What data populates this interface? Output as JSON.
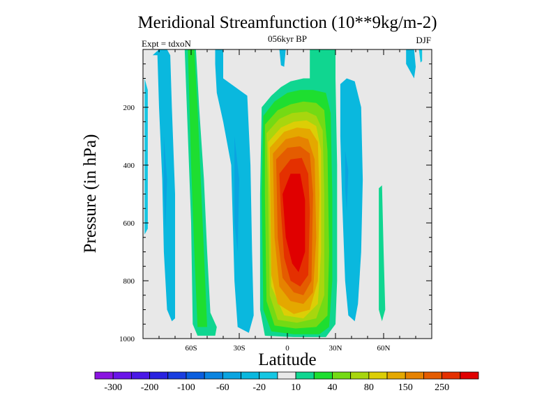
{
  "chart_data": {
    "type": "heatmap",
    "title": "Meridional Streamfunction (10**9kg/m-2)",
    "subtitle": "056kyr BP",
    "left_label": "Expt = tdxoN",
    "right_label": "DJF",
    "xlabel": "Latitude",
    "ylabel": "Pressure (in hPa)",
    "xlim": [
      -90,
      90
    ],
    "ylim": [
      0,
      1000
    ],
    "y_reversed": true,
    "x_ticks": [
      {
        "value": -60,
        "label": "60S"
      },
      {
        "value": -30,
        "label": "30S"
      },
      {
        "value": 0,
        "label": "0"
      },
      {
        "value": 30,
        "label": "30N"
      },
      {
        "value": 60,
        "label": "60N"
      }
    ],
    "y_ticks": [
      {
        "value": 200,
        "label": "200"
      },
      {
        "value": 400,
        "label": "400"
      },
      {
        "value": 600,
        "label": "600"
      },
      {
        "value": 800,
        "label": "800"
      },
      {
        "value": 1000,
        "label": "1000"
      }
    ],
    "contour_levels": [
      -300,
      -250,
      -200,
      -150,
      -100,
      -80,
      -60,
      -40,
      -20,
      -10,
      10,
      20,
      40,
      60,
      80,
      100,
      150,
      200,
      250,
      300
    ],
    "colors": [
      "#8a14e0",
      "#6a14e8",
      "#4a18e6",
      "#2a22e0",
      "#1a3ee0",
      "#0a5ede",
      "#0a84e0",
      "#0aa4e0",
      "#0ab8de",
      "#14c6e2",
      "#e8e8e8",
      "#10d690",
      "#1ede30",
      "#74da14",
      "#a8d60e",
      "#dcce06",
      "#e4a800",
      "#e68200",
      "#e45c00",
      "#e43000",
      "#e00000"
    ],
    "colorbar_labels": [
      {
        "after_level": 0,
        "label": "-300"
      },
      {
        "after_level": 2,
        "label": "-200"
      },
      {
        "after_level": 4,
        "label": "-100"
      },
      {
        "after_level": 6,
        "label": "-60"
      },
      {
        "after_level": 8,
        "label": "-20"
      },
      {
        "after_level": 10,
        "label": "10"
      },
      {
        "after_level": 12,
        "label": "40"
      },
      {
        "after_level": 14,
        "label": "80"
      },
      {
        "after_level": 16,
        "label": "150"
      },
      {
        "after_level": 18,
        "label": "250"
      }
    ],
    "regions": [
      {
        "name": "sh-polar-cell",
        "band": 8,
        "points": [
          [
            -84,
            20
          ],
          [
            -81,
            20
          ],
          [
            -80,
            200
          ],
          [
            -78,
            450
          ],
          [
            -77,
            700
          ],
          [
            -75,
            900
          ],
          [
            -72,
            940
          ],
          [
            -70,
            930
          ],
          [
            -70,
            500
          ],
          [
            -72,
            200
          ],
          [
            -73,
            20
          ],
          [
            -75,
            0
          ],
          [
            -80,
            0
          ]
        ]
      },
      {
        "name": "sh-polar-cell-core",
        "band": 7,
        "points": [
          [
            -77,
            300
          ],
          [
            -75,
            450
          ],
          [
            -76,
            620
          ],
          [
            -77,
            480
          ]
        ]
      },
      {
        "name": "sh-ferrel-cell-outer",
        "band": 11,
        "points": [
          [
            -64,
            0
          ],
          [
            -57,
            0
          ],
          [
            -55,
            200
          ],
          [
            -52,
            450
          ],
          [
            -50,
            700
          ],
          [
            -48,
            910
          ],
          [
            -44,
            960
          ],
          [
            -45,
            990
          ],
          [
            -56,
            990
          ],
          [
            -59,
            950
          ],
          [
            -60,
            600
          ],
          [
            -62,
            300
          ]
        ]
      },
      {
        "name": "sh-ferrel-cell",
        "band": 12,
        "points": [
          [
            -62,
            0
          ],
          [
            -58,
            0
          ],
          [
            -56,
            200
          ],
          [
            -54,
            450
          ],
          [
            -52,
            700
          ],
          [
            -50,
            960
          ],
          [
            -56,
            960
          ],
          [
            -58,
            700
          ],
          [
            -60,
            400
          ],
          [
            -61,
            200
          ]
        ]
      },
      {
        "name": "sh-hadley-cell",
        "band": 8,
        "points": [
          [
            -45,
            0
          ],
          [
            -40,
            0
          ],
          [
            -40,
            100
          ],
          [
            -30,
            140
          ],
          [
            -25,
            160
          ],
          [
            -23,
            400
          ],
          [
            -22,
            700
          ],
          [
            -21,
            920
          ],
          [
            -24,
            980
          ],
          [
            -31,
            960
          ],
          [
            -33,
            800
          ],
          [
            -34,
            600
          ],
          [
            -35,
            400
          ],
          [
            -40,
            250
          ],
          [
            -44,
            150
          ],
          [
            -45,
            50
          ]
        ]
      },
      {
        "name": "sh-hadley-core",
        "band": 7,
        "points": [
          [
            -33,
            300
          ],
          [
            -30,
            450
          ],
          [
            -31,
            700
          ],
          [
            -33,
            600
          ]
        ]
      },
      {
        "name": "trop-outer-10",
        "band": 11,
        "points": [
          [
            -16,
            200
          ],
          [
            -10,
            160
          ],
          [
            -4,
            130
          ],
          [
            2,
            110
          ],
          [
            10,
            100
          ],
          [
            14,
            100
          ],
          [
            14,
            0
          ],
          [
            30,
            0
          ],
          [
            30,
            100
          ],
          [
            31,
            400
          ],
          [
            31,
            800
          ],
          [
            30,
            950
          ],
          [
            24,
            995
          ],
          [
            4,
            995
          ],
          [
            -14,
            990
          ],
          [
            -17,
            900
          ],
          [
            -17,
            500
          ]
        ]
      },
      {
        "name": "trop-20",
        "band": 12,
        "points": [
          [
            -15,
            230
          ],
          [
            -8,
            180
          ],
          [
            0,
            150
          ],
          [
            8,
            140
          ],
          [
            16,
            140
          ],
          [
            24,
            150
          ],
          [
            27,
            220
          ],
          [
            28,
            500
          ],
          [
            28,
            800
          ],
          [
            26,
            960
          ],
          [
            20,
            985
          ],
          [
            4,
            985
          ],
          [
            -10,
            975
          ],
          [
            -15,
            900
          ],
          [
            -16,
            500
          ]
        ]
      },
      {
        "name": "trop-40",
        "band": 13,
        "points": [
          [
            -14,
            260
          ],
          [
            -6,
            210
          ],
          [
            2,
            190
          ],
          [
            10,
            180
          ],
          [
            18,
            185
          ],
          [
            23,
            210
          ],
          [
            25,
            350
          ],
          [
            26,
            700
          ],
          [
            25,
            920
          ],
          [
            18,
            960
          ],
          [
            5,
            965
          ],
          [
            -8,
            955
          ],
          [
            -13,
            870
          ],
          [
            -14,
            500
          ]
        ]
      },
      {
        "name": "trop-60",
        "band": 14,
        "points": [
          [
            -13,
            290
          ],
          [
            -5,
            240
          ],
          [
            3,
            220
          ],
          [
            12,
            215
          ],
          [
            18,
            230
          ],
          [
            22,
            280
          ],
          [
            23,
            500
          ],
          [
            23,
            850
          ],
          [
            18,
            930
          ],
          [
            6,
            945
          ],
          [
            -6,
            935
          ],
          [
            -11,
            850
          ],
          [
            -12,
            500
          ]
        ]
      },
      {
        "name": "trop-80",
        "band": 15,
        "points": [
          [
            -12,
            320
          ],
          [
            -4,
            270
          ],
          [
            4,
            250
          ],
          [
            12,
            245
          ],
          [
            18,
            265
          ],
          [
            21,
            350
          ],
          [
            21,
            700
          ],
          [
            19,
            880
          ],
          [
            10,
            930
          ],
          [
            -2,
            920
          ],
          [
            -10,
            820
          ],
          [
            -11,
            500
          ]
        ]
      },
      {
        "name": "trop-100",
        "band": 16,
        "points": [
          [
            -11,
            340
          ],
          [
            -2,
            285
          ],
          [
            6,
            270
          ],
          [
            14,
            275
          ],
          [
            19,
            320
          ],
          [
            20,
            500
          ],
          [
            19,
            800
          ],
          [
            14,
            900
          ],
          [
            4,
            915
          ],
          [
            -6,
            880
          ],
          [
            -10,
            780
          ]
        ]
      },
      {
        "name": "trop-150",
        "band": 17,
        "points": [
          [
            -9,
            360
          ],
          [
            -1,
            310
          ],
          [
            7,
            300
          ],
          [
            13,
            310
          ],
          [
            17,
            380
          ],
          [
            18,
            650
          ],
          [
            16,
            840
          ],
          [
            10,
            880
          ],
          [
            2,
            870
          ],
          [
            -5,
            820
          ],
          [
            -8,
            650
          ]
        ]
      },
      {
        "name": "trop-200",
        "band": 18,
        "points": [
          [
            -7,
            380
          ],
          [
            0,
            340
          ],
          [
            8,
            335
          ],
          [
            14,
            360
          ],
          [
            16,
            500
          ],
          [
            15,
            800
          ],
          [
            10,
            850
          ],
          [
            4,
            840
          ],
          [
            -3,
            790
          ],
          [
            -6,
            650
          ]
        ]
      },
      {
        "name": "trop-250",
        "band": 19,
        "points": [
          [
            -5,
            430
          ],
          [
            2,
            380
          ],
          [
            9,
            375
          ],
          [
            13,
            430
          ],
          [
            14,
            560
          ],
          [
            13,
            780
          ],
          [
            8,
            820
          ],
          [
            2,
            800
          ],
          [
            -2,
            720
          ],
          [
            -4,
            560
          ]
        ]
      },
      {
        "name": "trop-300",
        "band": 20,
        "points": [
          [
            -3,
            500
          ],
          [
            2,
            430
          ],
          [
            8,
            430
          ],
          [
            11,
            520
          ],
          [
            11,
            700
          ],
          [
            7,
            770
          ],
          [
            3,
            740
          ],
          [
            -1,
            650
          ]
        ]
      },
      {
        "name": "nh-hadley-cell",
        "band": 8,
        "points": [
          [
            33,
            120
          ],
          [
            37,
            100
          ],
          [
            42,
            110
          ],
          [
            46,
            200
          ],
          [
            47,
            450
          ],
          [
            46,
            700
          ],
          [
            44,
            880
          ],
          [
            42,
            940
          ],
          [
            38,
            920
          ],
          [
            36,
            800
          ],
          [
            34,
            500
          ],
          [
            33,
            300
          ]
        ]
      },
      {
        "name": "nh-hadley-core",
        "band": 7,
        "points": [
          [
            36,
            350
          ],
          [
            38,
            420
          ],
          [
            37,
            560
          ],
          [
            36,
            480
          ]
        ]
      },
      {
        "name": "nh-ferrel-cell",
        "band": 11,
        "points": [
          [
            57,
            480
          ],
          [
            59,
            470
          ],
          [
            60,
            700
          ],
          [
            61,
            900
          ],
          [
            59,
            940
          ],
          [
            57,
            900
          ]
        ]
      },
      {
        "name": "nh-strat-patch-1",
        "band": 8,
        "points": [
          [
            74,
            0
          ],
          [
            79,
            0
          ],
          [
            80,
            60
          ],
          [
            79,
            100
          ],
          [
            77,
            80
          ],
          [
            74,
            50
          ]
        ]
      },
      {
        "name": "nh-strat-patch-2",
        "band": 8,
        "points": [
          [
            -5,
            0
          ],
          [
            -1,
            0
          ],
          [
            -2,
            60
          ],
          [
            -4,
            55
          ]
        ]
      },
      {
        "name": "nh-strat-patch-3",
        "band": 9,
        "points": [
          [
            82,
            0
          ],
          [
            84,
            0
          ],
          [
            84,
            40
          ],
          [
            83,
            45
          ]
        ]
      },
      {
        "name": "sh-edge-sliver",
        "band": 9,
        "points": [
          [
            -89,
            100
          ],
          [
            -87,
            140
          ],
          [
            -87,
            620
          ],
          [
            -89,
            640
          ]
        ]
      }
    ]
  }
}
